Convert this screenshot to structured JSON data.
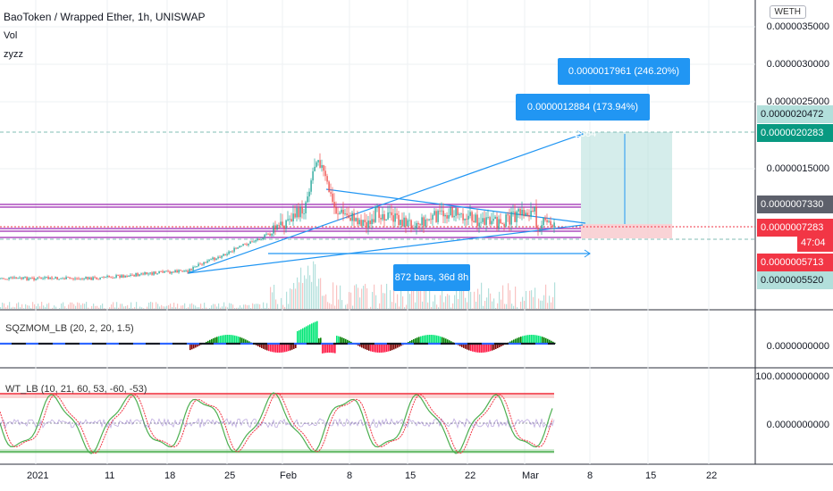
{
  "header": {
    "title": "BaoToken / Wrapped Ether, 1h, UNISWAP",
    "vol_label": "Vol",
    "study_label": "zyzz",
    "quote_currency": "WETH"
  },
  "price_axis": {
    "ticks": [
      "0.0000035000",
      "0.0000030000",
      "0.0000025000",
      "0.0000015000",
      "0.0000000000",
      "100.0000000000"
    ]
  },
  "price_labels": [
    {
      "text": "0.0000020472",
      "bg": "#b2dfdb",
      "fg": "#131722"
    },
    {
      "text": "0.0000020283",
      "bg": "#089981",
      "fg": "#ffffff"
    },
    {
      "text": "0.0000007330",
      "bg": "#5d606b",
      "fg": "#ffffff"
    },
    {
      "text": "0.0000007283",
      "bg": "#f23645",
      "fg": "#ffffff"
    },
    {
      "text": "47:04",
      "bg": "#f23645",
      "fg": "#ffffff"
    },
    {
      "text": "0.0000005713",
      "bg": "#f23645",
      "fg": "#ffffff"
    },
    {
      "text": "0.0000005520",
      "bg": "#b2dfdb",
      "fg": "#131722"
    }
  ],
  "tooltips": {
    "upper": "0.0000017961 (246.20%) 17961",
    "lower": "0.0000012884 (173.94%) 12884",
    "range": "872 bars, 36d 8h"
  },
  "indicators": {
    "sqz": "SQZMOM_LB (20, 2, 20, 1.5)",
    "wt": "WT_LB (10, 21, 60, 53, -60, -53)",
    "sqz_value": "0.0000000000",
    "wt_value": "0.0000000000",
    "wt_top": "100.0000000000"
  },
  "time_axis": {
    "ticks": [
      "2021",
      "11",
      "18",
      "25",
      "Feb",
      "8",
      "15",
      "22",
      "Mar",
      "8",
      "15",
      "22"
    ]
  },
  "colors": {
    "up": "#26a69a",
    "down": "#ef5350",
    "accent": "#2196f3",
    "purple": "#9c27b0",
    "target": "#b2dfdb",
    "stop": "#f8c8cc"
  }
}
